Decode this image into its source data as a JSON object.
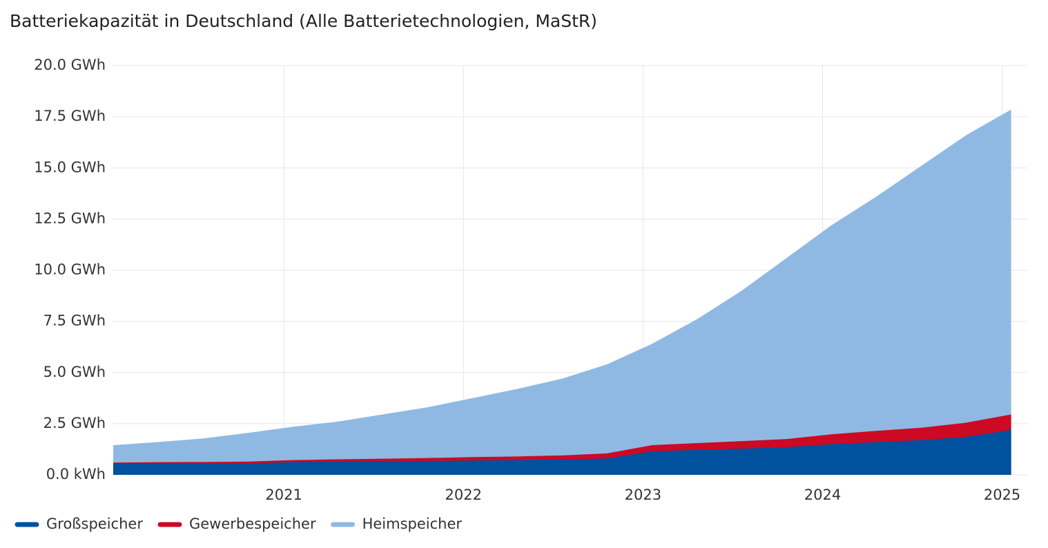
{
  "chart_data": {
    "type": "stacked-area",
    "title": "Batteriekapazität in Deutschland (Alle Batterietechnologien, MaStR)",
    "x": [
      2020.05,
      2020.3,
      2020.55,
      2020.8,
      2021.05,
      2021.3,
      2021.55,
      2021.8,
      2022.05,
      2022.3,
      2022.55,
      2022.8,
      2023.05,
      2023.3,
      2023.55,
      2023.8,
      2024.05,
      2024.3,
      2024.55,
      2024.8,
      2025.05
    ],
    "series": [
      {
        "name": "Großspeicher",
        "color": "#00519e",
        "values": [
          0.55,
          0.55,
          0.55,
          0.55,
          0.62,
          0.65,
          0.67,
          0.68,
          0.7,
          0.72,
          0.75,
          0.8,
          1.15,
          1.22,
          1.28,
          1.35,
          1.5,
          1.6,
          1.7,
          1.85,
          2.2
        ]
      },
      {
        "name": "Gewerbespeicher",
        "color": "#cc0a24",
        "values": [
          0.05,
          0.07,
          0.08,
          0.1,
          0.1,
          0.11,
          0.12,
          0.14,
          0.17,
          0.18,
          0.2,
          0.25,
          0.3,
          0.33,
          0.37,
          0.4,
          0.48,
          0.55,
          0.6,
          0.7,
          0.75
        ]
      },
      {
        "name": "Heimspeicher",
        "color": "#8fb9e3",
        "values": [
          0.85,
          0.98,
          1.15,
          1.4,
          1.63,
          1.84,
          2.16,
          2.48,
          2.88,
          3.3,
          3.75,
          4.35,
          4.95,
          6.05,
          7.35,
          8.85,
          10.22,
          11.45,
          12.8,
          14.05,
          14.9
        ]
      }
    ],
    "xlim": [
      2020.046,
      2025.14
    ],
    "xticks": [
      2021,
      2022,
      2023,
      2024,
      2025
    ],
    "ylim": [
      0,
      20
    ],
    "yticks": [
      {
        "value": 0,
        "label": "0.0 kWh"
      },
      {
        "value": 2.5,
        "label": "2.5 GWh"
      },
      {
        "value": 5,
        "label": "5.0 GWh"
      },
      {
        "value": 7.5,
        "label": "7.5 GWh"
      },
      {
        "value": 10,
        "label": "10.0 GWh"
      },
      {
        "value": 12.5,
        "label": "12.5 GWh"
      },
      {
        "value": 15,
        "label": "15.0 GWh"
      },
      {
        "value": 17.5,
        "label": "17.5 GWh"
      },
      {
        "value": 20,
        "label": "20.0 GWh"
      }
    ],
    "grid": true,
    "legend": "bottom-left"
  }
}
